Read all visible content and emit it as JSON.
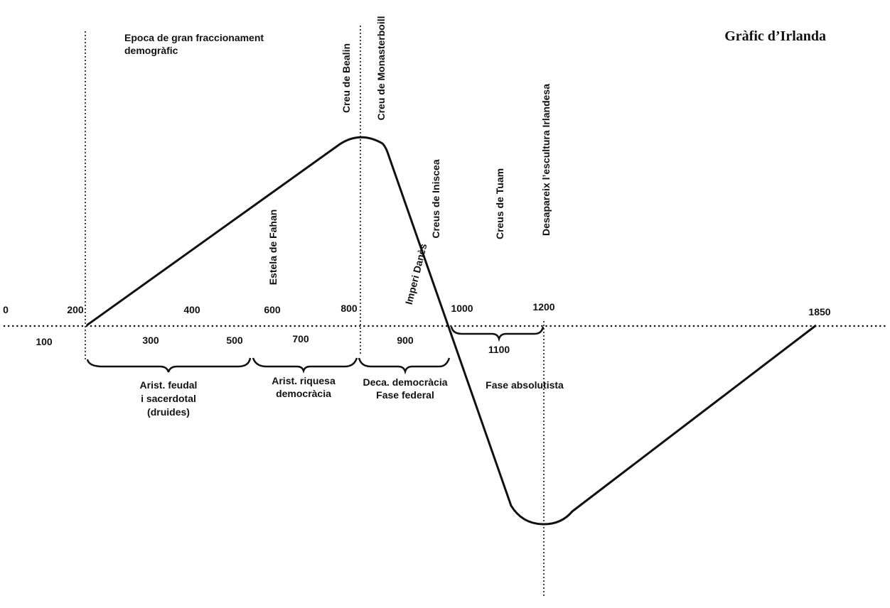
{
  "title": "Gràfic d’Irlanda",
  "top_note": [
    "Epoca de gran fraccionament",
    "demogràfic"
  ],
  "years_above": [
    "0",
    "200",
    "400",
    "600",
    "800",
    "1000",
    "1200",
    "1850"
  ],
  "years_below": [
    "100",
    "300",
    "500",
    "700",
    "900",
    "1100"
  ],
  "vertical_labels": [
    "Creu de Bealin",
    "Creu de Monasterboill",
    "Estela de Fahan",
    "Imperi Danès",
    "Creus de Iniscea",
    "Creus de Tuam",
    "Desapareix l’escultura Irlandesa"
  ],
  "phases": [
    [
      "Arist. feudal",
      "i sacerdotal",
      "(druides)"
    ],
    [
      "Arist. riquesa",
      "democràcia"
    ],
    [
      "Deca. democràcia",
      "Fase federal"
    ],
    [
      "Fase absolutista"
    ]
  ]
}
